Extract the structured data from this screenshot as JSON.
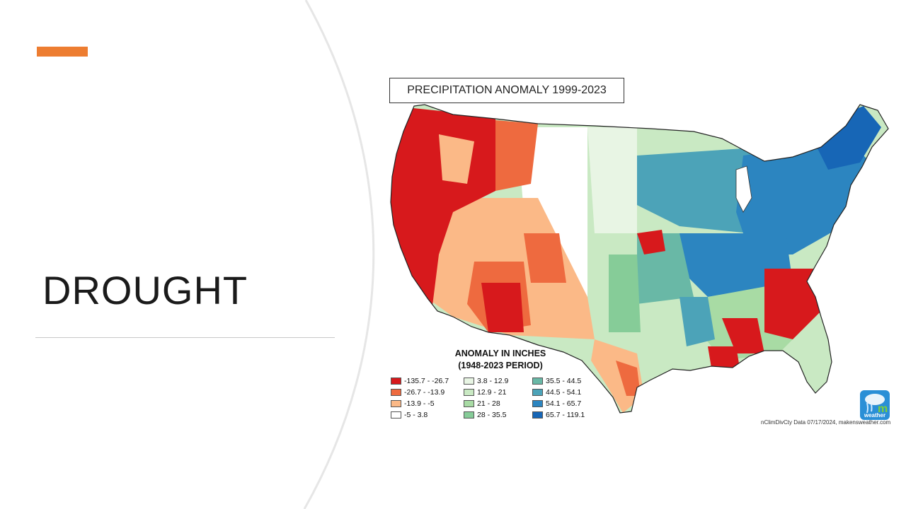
{
  "slide": {
    "title": "DROUGHT",
    "accent_color": "#ED7D31",
    "curve_color": "#e6e6e6"
  },
  "map": {
    "title": "PRECIPITATION ANOMALY 1999-2023",
    "region": "Contiguous United States",
    "legend": {
      "title_line1": "ANOMALY IN INCHES",
      "title_line2": "(1948-2023 PERIOD)",
      "items": [
        {
          "label": "-135.7 - -26.7",
          "color": "#d7191c"
        },
        {
          "label": "-26.7 - -13.9",
          "color": "#ee6a3f"
        },
        {
          "label": "-13.9 - -5",
          "color": "#fbb987"
        },
        {
          "label": "-5 - 3.8",
          "color": "#ffffff"
        },
        {
          "label": "3.8 - 12.9",
          "color": "#e8f5e4"
        },
        {
          "label": "12.9 - 21",
          "color": "#c9e9c3"
        },
        {
          "label": "21 - 28",
          "color": "#a8dba4"
        },
        {
          "label": "28 - 35.5",
          "color": "#86cc98"
        },
        {
          "label": "35.5 - 44.5",
          "color": "#69b8a6"
        },
        {
          "label": "44.5 - 54.1",
          "color": "#4ca3b8"
        },
        {
          "label": "54.1 - 65.7",
          "color": "#2c85c0"
        },
        {
          "label": "65.7 - 119.1",
          "color": "#1766b6"
        }
      ]
    },
    "credit": "nClimDivCty Data 07/17/2024, makensweather.com",
    "logo_label": "weather"
  }
}
